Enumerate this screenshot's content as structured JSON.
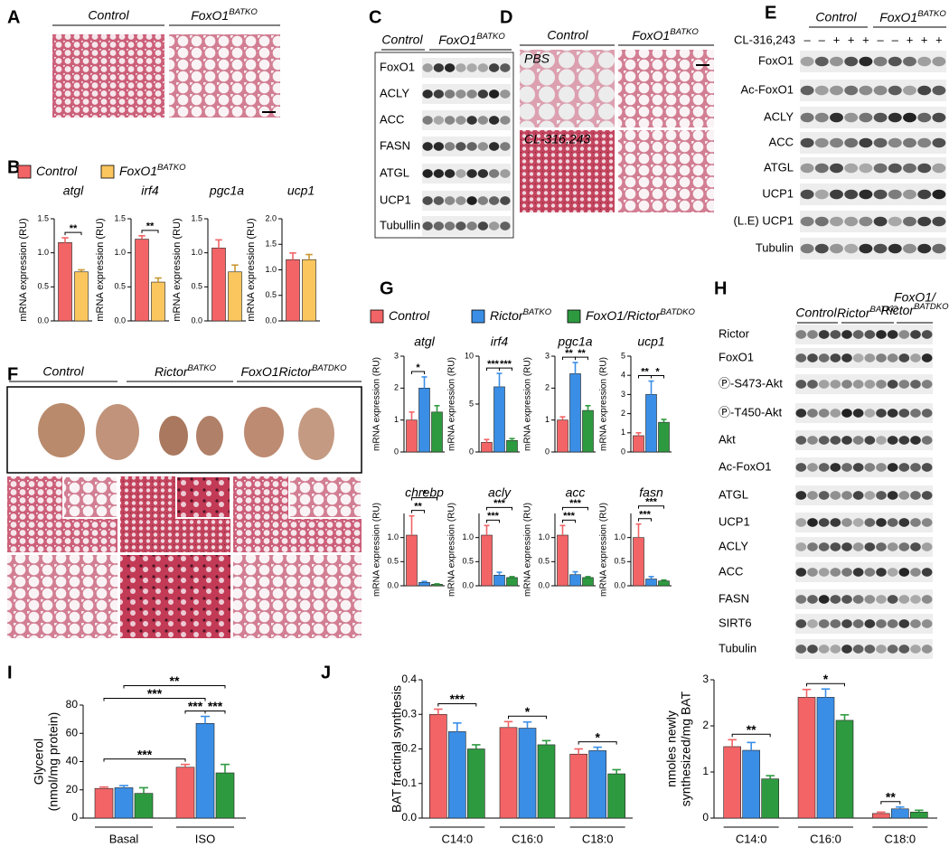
{
  "panel_labels": [
    "A",
    "B",
    "C",
    "D",
    "E",
    "F",
    "G",
    "H",
    "I",
    "J"
  ],
  "A": {
    "groups": [
      "Control",
      {
        "text": "FoxO1",
        "sup": "BATKO"
      }
    ]
  },
  "C": {
    "groups": [
      "Control",
      {
        "text": "FoxO1",
        "sup": "BATKO"
      }
    ],
    "rows": [
      "FoxO1",
      "ACLY",
      "ACC",
      "FASN",
      "ATGL",
      "UCP1",
      "Tubullin"
    ]
  },
  "D": {
    "groups": [
      "Control",
      {
        "text": "FoxO1",
        "sup": "BATKO"
      }
    ],
    "conditions": [
      "PBS",
      "CL-316,243"
    ]
  },
  "E": {
    "groups": [
      "Control",
      {
        "text": "FoxO1",
        "sup": "BATKO"
      }
    ],
    "treatment": {
      "label": "CL-316,243",
      "lanes": [
        "–",
        "–",
        "+",
        "+",
        "+",
        "–",
        "–",
        "+",
        "+",
        "+"
      ]
    },
    "rows": [
      "FoxO1",
      "Ac-FoxO1",
      "ACLY",
      "ACC",
      "ATGL",
      "UCP1",
      "(L.E) UCP1",
      "Tubulin"
    ]
  },
  "F": {
    "groups": [
      "Control",
      {
        "text": "Rictor",
        "sup": "BATKO"
      },
      {
        "text": "FoxO1Rictor",
        "sup": "BATDKO"
      }
    ]
  },
  "H": {
    "groups": [
      "Control",
      {
        "text": "Rictor",
        "sup": "BATKO"
      },
      {
        "lines": [
          "FoxO1/",
          {
            "text": "Rictor",
            "sup": "BATDKO"
          }
        ]
      }
    ],
    "rows": [
      "Rictor",
      "FoxO1",
      "Ⓟ-S473-Akt",
      "Ⓟ-T450-Akt",
      "Akt",
      "Ac-FoxO1",
      "ATGL",
      "UCP1",
      "ACLY",
      "ACC",
      "FASN",
      "SIRT6",
      "Tubulin"
    ]
  },
  "chart_data": [
    {
      "type": "bar",
      "series": [
        {
          "name": "Control",
          "color": "#f26466"
        },
        {
          "name": "FoxO1",
          "sup": "BATKO",
          "color": "#fbc65e"
        }
      ],
      "subplots": [
        {
          "title": "atgl",
          "y_label": "mRNA expression (RU)",
          "ylim": [
            0,
            1.5
          ],
          "yticks": [
            {
              "value": 0,
              "label": "0.0"
            },
            0.5,
            {
              "value": 1,
              "label": "1.0"
            },
            1.5
          ],
          "values": [
            1.15,
            0.72
          ],
          "errors": [
            0.07,
            0.03
          ],
          "annotations": [
            {
              "label": "**",
              "between": [
                0,
                1
              ]
            }
          ]
        },
        {
          "title": "irf4",
          "y_label": "mRNA expression (RU)",
          "ylim": [
            0,
            1.5
          ],
          "yticks": [
            {
              "value": 0,
              "label": "0.0"
            },
            0.5,
            {
              "value": 1,
              "label": "1.0"
            },
            1.5
          ],
          "values": [
            1.2,
            0.57
          ],
          "errors": [
            0.05,
            0.06
          ],
          "annotations": [
            {
              "label": "**",
              "between": [
                0,
                1
              ]
            }
          ]
        },
        {
          "title": "pgc1a",
          "y_label": "mRNA expression (RU)",
          "ylim": [
            0,
            1.5
          ],
          "yticks": [
            {
              "value": 0,
              "label": "0.0"
            },
            0.5,
            {
              "value": 1,
              "label": "1.0"
            },
            1.5
          ],
          "values": [
            1.07,
            0.72
          ],
          "errors": [
            0.12,
            0.1
          ],
          "annotations": []
        },
        {
          "title": "ucp1",
          "y_label": "mRNA expression (RU)",
          "ylim": [
            0,
            2
          ],
          "yticks": [
            {
              "value": 0,
              "label": "0.0"
            },
            0.5,
            {
              "value": 1,
              "label": "1.0"
            },
            1.5,
            {
              "value": 2,
              "label": "2.0"
            }
          ],
          "values": [
            1.2,
            1.2
          ],
          "errors": [
            0.13,
            0.1
          ],
          "annotations": []
        }
      ]
    },
    {
      "type": "bar",
      "series": [
        {
          "name": "Control",
          "color": "#f26466"
        },
        {
          "name": "Rictor",
          "sup": "BATKO",
          "color": "#3a8ee6"
        },
        {
          "name": "FoxO1/Rictor",
          "sup": "BATDKO",
          "color": "#2e9a40"
        }
      ],
      "subplots": [
        {
          "title": "atgl",
          "y_label": "mRNA expression (RU)",
          "ylim": [
            0,
            3
          ],
          "yticks": [
            0,
            1,
            2,
            3
          ],
          "values": [
            1.0,
            2.0,
            1.25
          ],
          "errors": [
            0.25,
            0.35,
            0.2
          ],
          "annotations": [
            {
              "label": "*",
              "between": [
                0,
                1
              ]
            }
          ]
        },
        {
          "title": "irf4",
          "y_label": "mRNA expression (RU)",
          "ylim": [
            0,
            10
          ],
          "yticks": [
            0,
            5,
            10
          ],
          "values": [
            1.0,
            6.8,
            1.2
          ],
          "errors": [
            0.3,
            1.4,
            0.2
          ],
          "annotations": [
            {
              "label": "***",
              "between": [
                0,
                1
              ]
            },
            {
              "label": "***",
              "between": [
                1,
                2
              ]
            }
          ]
        },
        {
          "title": "pgc1a",
          "y_label": "mRNA expression (RU)",
          "ylim": [
            0,
            3
          ],
          "yticks": [
            0,
            1,
            2,
            3
          ],
          "values": [
            1.0,
            2.45,
            1.3
          ],
          "errors": [
            0.1,
            0.35,
            0.15
          ],
          "annotations": [
            {
              "label": "**",
              "between": [
                0,
                1
              ]
            },
            {
              "label": "**",
              "between": [
                1,
                2
              ]
            }
          ]
        },
        {
          "title": "ucp1",
          "y_label": "mRNA expression (RU)",
          "ylim": [
            0,
            5
          ],
          "yticks": [
            0,
            1,
            2,
            3,
            4,
            5
          ],
          "values": [
            0.85,
            3.0,
            1.55
          ],
          "errors": [
            0.15,
            0.7,
            0.15
          ],
          "annotations": [
            {
              "label": "**",
              "between": [
                0,
                1
              ]
            },
            {
              "label": "*",
              "between": [
                1,
                2
              ]
            }
          ]
        },
        {
          "title": "chrebp",
          "y_label": "mRNA expression (RU)",
          "ylim": [
            0,
            1.5
          ],
          "yticks": [
            {
              "value": 0,
              "label": "0.0"
            },
            0.5,
            {
              "value": 1,
              "label": "1.0"
            }
          ],
          "values": [
            1.05,
            0.07,
            0.03
          ],
          "errors": [
            0.4,
            0.02,
            0.01
          ],
          "annotations": [
            {
              "label": "**",
              "between": [
                0,
                1
              ]
            },
            {
              "label": "*",
              "between": [
                0,
                2
              ]
            }
          ]
        },
        {
          "title": "acly",
          "y_label": "mRNA expression (RU)",
          "ylim": [
            0,
            1.5
          ],
          "yticks": [
            {
              "value": 0,
              "label": "0.0"
            },
            0.5,
            {
              "value": 1,
              "label": "1.0"
            }
          ],
          "values": [
            1.05,
            0.22,
            0.17
          ],
          "errors": [
            0.2,
            0.06,
            0.02
          ],
          "annotations": [
            {
              "label": "***",
              "between": [
                0,
                1
              ]
            },
            {
              "label": "***",
              "between": [
                0,
                2
              ]
            }
          ]
        },
        {
          "title": "acc",
          "y_label": "mRNA expression (RU)",
          "ylim": [
            0,
            1.5
          ],
          "yticks": [
            {
              "value": 0,
              "label": "0.0"
            },
            0.5,
            {
              "value": 1,
              "label": "1.0"
            }
          ],
          "values": [
            1.05,
            0.23,
            0.17
          ],
          "errors": [
            0.2,
            0.06,
            0.02
          ],
          "annotations": [
            {
              "label": "***",
              "between": [
                0,
                1
              ]
            },
            {
              "label": "***",
              "between": [
                0,
                2
              ]
            }
          ]
        },
        {
          "title": "fasn",
          "y_label": "mRNA expression (RU)",
          "ylim": [
            0,
            1.5
          ],
          "yticks": [
            {
              "value": 0,
              "label": "0.0"
            },
            0.5,
            {
              "value": 1,
              "label": "1.0"
            }
          ],
          "values": [
            1.0,
            0.14,
            0.1
          ],
          "errors": [
            0.28,
            0.05,
            0.02
          ],
          "annotations": [
            {
              "label": "***",
              "between": [
                0,
                1
              ]
            },
            {
              "label": "***",
              "between": [
                0,
                2
              ]
            }
          ]
        }
      ]
    },
    {
      "type": "bar",
      "colors": [
        "#f26466",
        "#3a8ee6",
        "#2e9a40"
      ],
      "subplots": [
        {
          "y_label": [
            "Glycerol",
            "(nmol/mg protein)"
          ],
          "groups": [
            "Basal",
            "ISO"
          ],
          "ylim": [
            0,
            80
          ],
          "yticks": [
            0,
            20,
            40,
            60,
            80
          ],
          "values": [
            [
              21,
              21.5,
              17.5
            ],
            [
              36,
              67,
              32
            ]
          ],
          "errors": [
            [
              1,
              1.5,
              4
            ],
            [
              2,
              5,
              6
            ]
          ],
          "annotations": [
            {
              "label": "***",
              "between": [
                0,
                3
              ]
            },
            {
              "label": "***",
              "between": [
                3,
                4
              ]
            },
            {
              "label": "***",
              "between": [
                4,
                5
              ]
            },
            {
              "label": "***",
              "between": [
                0,
                4
              ]
            },
            {
              "label": "**",
              "between": [
                1,
                5
              ]
            }
          ]
        }
      ]
    },
    {
      "type": "bar",
      "colors": [
        "#f26466",
        "#3a8ee6",
        "#2e9a40"
      ],
      "subplots": [
        {
          "y_label": "BAT fractinal synthesis",
          "groups": [
            "C14:0",
            "C16:0",
            "C18:0"
          ],
          "ylim": [
            0,
            0.4
          ],
          "yticks": [
            {
              "value": 0,
              "label": "0.0"
            },
            0.1,
            0.2,
            0.3,
            0.4
          ],
          "values": [
            [
              0.3,
              0.25,
              0.2
            ],
            [
              0.262,
              0.26,
              0.212
            ],
            [
              0.185,
              0.195,
              0.128
            ]
          ],
          "errors": [
            [
              0.015,
              0.025,
              0.012
            ],
            [
              0.017,
              0.018,
              0.012
            ],
            [
              0.015,
              0.01,
              0.012
            ]
          ],
          "annotations": [
            {
              "label": "***",
              "between": [
                0,
                2
              ]
            },
            {
              "label": "*",
              "between": [
                3,
                5
              ]
            },
            {
              "label": "*",
              "between": [
                6,
                8
              ]
            }
          ]
        },
        {
          "y_label": [
            "nmoles newly",
            "synthesized/mg BAT"
          ],
          "groups": [
            "C14:0",
            "C16:0",
            "C18:0"
          ],
          "ylim": [
            0,
            3
          ],
          "yticks": [
            0,
            1,
            2,
            3
          ],
          "values": [
            [
              1.55,
              1.47,
              0.85
            ],
            [
              2.62,
              2.62,
              2.12
            ],
            [
              0.1,
              0.2,
              0.13
            ]
          ],
          "errors": [
            [
              0.15,
              0.17,
              0.07
            ],
            [
              0.17,
              0.18,
              0.12
            ],
            [
              0.03,
              0.04,
              0.04
            ]
          ],
          "annotations": [
            {
              "label": "**",
              "between": [
                0,
                2
              ]
            },
            {
              "label": "*",
              "between": [
                3,
                5
              ]
            },
            {
              "label": "**",
              "between": [
                6,
                7
              ]
            }
          ]
        }
      ]
    }
  ]
}
